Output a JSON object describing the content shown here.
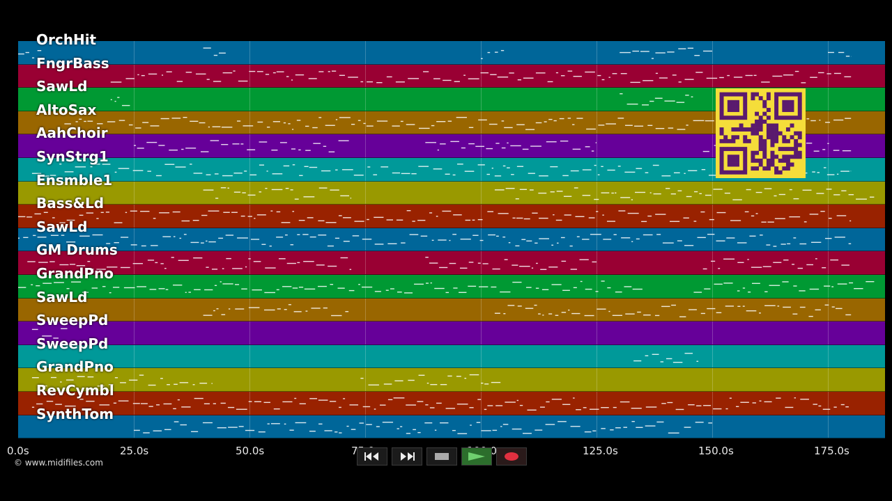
{
  "app": {
    "copyright": "© www.midifiles.com"
  },
  "timeline": {
    "ticks": [
      "0.0s",
      "25.0s",
      "50.0s",
      "75.0s",
      "100.0s",
      "125.0s",
      "150.0s",
      "175.0s"
    ]
  },
  "tracks": [
    {
      "name": "OrchHit",
      "color": "#006699"
    },
    {
      "name": "FngrBass",
      "color": "#990033"
    },
    {
      "name": "SawLd",
      "color": "#009933"
    },
    {
      "name": "AltoSax",
      "color": "#996600"
    },
    {
      "name": "AahChoir",
      "color": "#660099"
    },
    {
      "name": "SynStrg1",
      "color": "#009999"
    },
    {
      "name": "Ensmble1",
      "color": "#999900"
    },
    {
      "name": "Bass&Ld",
      "color": "#992200"
    },
    {
      "name": "SawLd",
      "color": "#006699"
    },
    {
      "name": "GM Drums",
      "color": "#990033"
    },
    {
      "name": "GrandPno",
      "color": "#009933"
    },
    {
      "name": "SawLd",
      "color": "#996600"
    },
    {
      "name": "SweepPd",
      "color": "#660099"
    },
    {
      "name": "SweepPd",
      "color": "#009999"
    },
    {
      "name": "GrandPno",
      "color": "#999900"
    },
    {
      "name": "RevCymbl",
      "color": "#992200"
    },
    {
      "name": "SynthTom",
      "color": "#006699"
    }
  ],
  "controls": {
    "rewind_icon": "rewind-icon",
    "fast_forward_icon": "fast-forward-icon",
    "stop_icon": "stop-icon",
    "play_icon": "play-icon",
    "record_icon": "record-icon"
  },
  "overlay": {
    "qr_color": "#5a1a6e",
    "qr_background": "#f5dd3a"
  }
}
